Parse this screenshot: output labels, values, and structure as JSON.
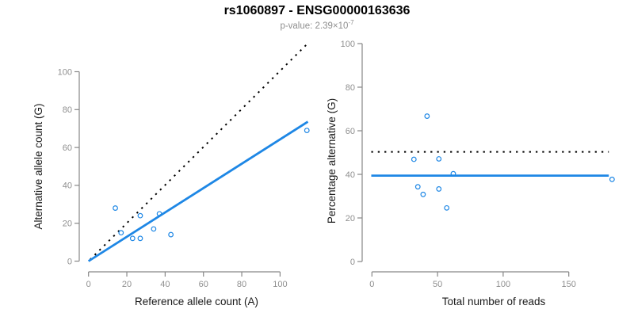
{
  "figure": {
    "title": "rs1060897 - ENSG00000163636",
    "subtitle_prefix": "p-value: 2.39×10",
    "subtitle_exponent": "-7",
    "colors": {
      "accent_blue": "#1E87E5",
      "line_black": "#000000",
      "axis_gray": "#878787",
      "tick_label_gray": "#8F8F8F",
      "axis_title_color": "#1A1A1A"
    }
  },
  "chart_data": [
    {
      "type": "scatter",
      "panel": "left",
      "xlabel": "Reference allele count (A)",
      "ylabel": "Alternative allele count (G)",
      "xticks": [
        0,
        20,
        40,
        60,
        80,
        100
      ],
      "yticks": [
        0,
        20,
        40,
        60,
        80,
        100
      ],
      "xlim": [
        0,
        114
      ],
      "ylim": [
        0,
        115
      ],
      "grid": false,
      "legend": "none",
      "points": [
        [
          14,
          28
        ],
        [
          17,
          15
        ],
        [
          23,
          12
        ],
        [
          27,
          12
        ],
        [
          27,
          24
        ],
        [
          34,
          17
        ],
        [
          37,
          25
        ],
        [
          43,
          14
        ],
        [
          114,
          69
        ]
      ],
      "lines": [
        {
          "name": "identity-line",
          "style": "dotted",
          "color": "#000000",
          "x1": 0.8,
          "y1": 0.8,
          "x2": 114,
          "y2": 114.5
        },
        {
          "name": "regression-line",
          "style": "solid",
          "color": "#1E87E5",
          "x1": 0,
          "y1": 0,
          "x2": 114.5,
          "y2": 73.6
        }
      ]
    },
    {
      "type": "scatter",
      "panel": "right",
      "xlabel": "Total number of reads",
      "ylabel": "Percentage alternative (G)",
      "xticks": [
        0,
        50,
        100,
        150
      ],
      "yticks": [
        0,
        20,
        40,
        60,
        80,
        100
      ],
      "xlim": [
        0,
        185
      ],
      "ylim": [
        0,
        100
      ],
      "grid": false,
      "legend": "none",
      "points": [
        [
          32,
          46.9
        ],
        [
          42,
          66.7
        ],
        [
          35,
          34.3
        ],
        [
          39,
          30.8
        ],
        [
          51,
          47.1
        ],
        [
          51,
          33.3
        ],
        [
          57,
          24.6
        ],
        [
          62,
          40.3
        ],
        [
          183,
          37.7
        ]
      ],
      "lines": [
        {
          "name": "expected-50pct-line",
          "style": "dotted",
          "color": "#000000",
          "x1": -0.5,
          "y1": 50.3,
          "x2": 180.5,
          "y2": 50.3
        },
        {
          "name": "mean-percentage-line",
          "style": "solid",
          "color": "#1E87E5",
          "x1": -0.5,
          "y1": 39.4,
          "x2": 180.5,
          "y2": 39.4
        }
      ]
    }
  ]
}
